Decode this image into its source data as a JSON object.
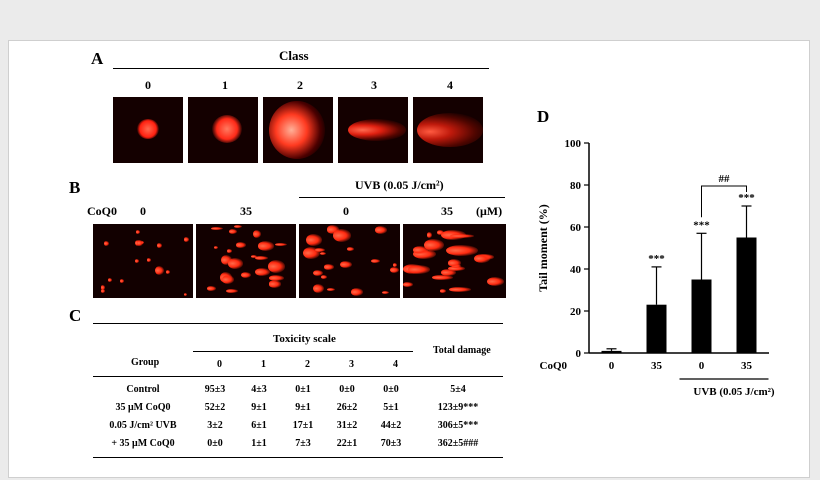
{
  "panelA": {
    "letter": "A",
    "header": "Class",
    "classes": [
      "0",
      "1",
      "2",
      "3",
      "4"
    ]
  },
  "panelB": {
    "letter": "B",
    "treatment": "CoQ0",
    "uvb": "UVB (0.05 J/cm²)",
    "doses": [
      "0",
      "35",
      "0",
      "35"
    ],
    "unit": "(μM)"
  },
  "panelC": {
    "letter": "C",
    "group_header": "Group",
    "scale_header": "Toxicity scale",
    "scale_levels": [
      "0",
      "1",
      "2",
      "3",
      "4"
    ],
    "total_header": "Total damage",
    "rows": [
      {
        "group": "Control",
        "values": [
          "95±3",
          "4±3",
          "0±1",
          "0±0",
          "0±0"
        ],
        "total": "5±4"
      },
      {
        "group": "35 μM CoQ0",
        "values": [
          "52±2",
          "9±1",
          "9±1",
          "26±2",
          "5±1"
        ],
        "total": "123±9***"
      },
      {
        "group": "0.05 J/cm² UVB",
        "values": [
          "3±2",
          "6±1",
          "17±1",
          "31±2",
          "44±2"
        ],
        "total": "306±5***"
      },
      {
        "group": "+ 35 μM CoQ0",
        "values": [
          "0±0",
          "1±1",
          "7±3",
          "22±1",
          "70±3"
        ],
        "total": "362±5###"
      }
    ]
  },
  "panelD": {
    "letter": "D",
    "chart_data": {
      "type": "bar",
      "categories": [
        "0",
        "35",
        "0",
        "35"
      ],
      "values": [
        1,
        23,
        35,
        55
      ],
      "errors": [
        1,
        18,
        22,
        15
      ],
      "annotations": [
        "",
        "***",
        "***",
        "***"
      ],
      "bracket_label": "##",
      "ylabel": "Tail moment (%)",
      "ylim": [
        0,
        100
      ],
      "yticks": [
        0,
        20,
        40,
        60,
        80,
        100
      ],
      "xprefix": "CoQ0",
      "xgroup_label": "UVB (0.05 J/cm²)",
      "bar_color": "#000000",
      "grid": false
    }
  },
  "colors": {
    "background": "#ebebeb",
    "frame": "#ffffff",
    "comet_red": "#ff2a1a"
  }
}
